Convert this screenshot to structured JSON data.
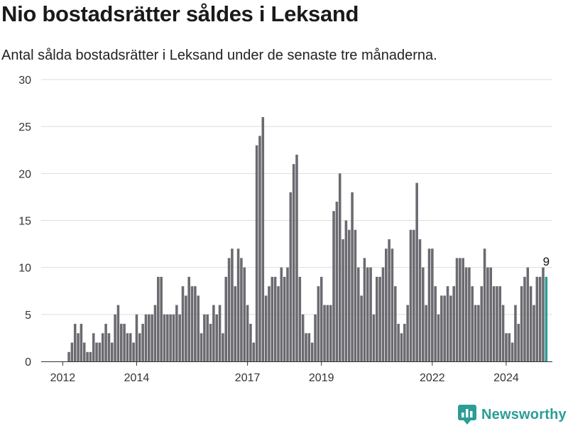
{
  "header": {
    "title": "Nio bostadsrätter såldes i Leksand",
    "subtitle": "Antal sålda bostadsrätter i Leksand under de senaste tre månaderna."
  },
  "brand": {
    "name": "Newsworthy"
  },
  "colors": {
    "bar": "#6b6a70",
    "highlight": "#2a9d96",
    "grid": "#dddddd",
    "axis": "#333333",
    "brand": "#2a9d96"
  },
  "chart_data": {
    "type": "bar",
    "ylim": [
      0,
      30
    ],
    "yticks": [
      "0",
      "5",
      "10",
      "15",
      "20",
      "25",
      "30"
    ],
    "x_start": "2011-06",
    "x_end": "2025-04",
    "xticks": [
      {
        "label": "2012",
        "date": "2012-01"
      },
      {
        "label": "2014",
        "date": "2014-01"
      },
      {
        "label": "2017",
        "date": "2017-01"
      },
      {
        "label": "2019",
        "date": "2019-01"
      },
      {
        "label": "2022",
        "date": "2022-01"
      },
      {
        "label": "2024",
        "date": "2024-01"
      }
    ],
    "grid": true,
    "first_period": "2012-03",
    "values": [
      1,
      2,
      4,
      3,
      4,
      2,
      1,
      1,
      3,
      2,
      2,
      3,
      4,
      3,
      2,
      5,
      6,
      4,
      4,
      3,
      3,
      2,
      5,
      3,
      4,
      5,
      5,
      5,
      6,
      9,
      9,
      5,
      5,
      5,
      5,
      6,
      5,
      8,
      7,
      9,
      8,
      8,
      7,
      3,
      5,
      5,
      4,
      6,
      5,
      6,
      3,
      9,
      11,
      12,
      8,
      12,
      11,
      10,
      6,
      4,
      2,
      23,
      24,
      26,
      7,
      8,
      9,
      9,
      8,
      10,
      9,
      10,
      18,
      21,
      22,
      9,
      5,
      3,
      3,
      2,
      5,
      8,
      9,
      6,
      6,
      6,
      16,
      17,
      20,
      13,
      15,
      14,
      18,
      14,
      10,
      7,
      11,
      10,
      10,
      5,
      9,
      9,
      10,
      12,
      13,
      12,
      8,
      4,
      3,
      4,
      6,
      14,
      14,
      19,
      13,
      10,
      6,
      12,
      12,
      8,
      5,
      7,
      7,
      8,
      7,
      8,
      11,
      11,
      11,
      10,
      10,
      8,
      6,
      6,
      8,
      12,
      10,
      10,
      8,
      8,
      8,
      6,
      3,
      3,
      2,
      6,
      4,
      8,
      9,
      10,
      8,
      6,
      9,
      9,
      10,
      9
    ],
    "highlight_label": "9"
  }
}
